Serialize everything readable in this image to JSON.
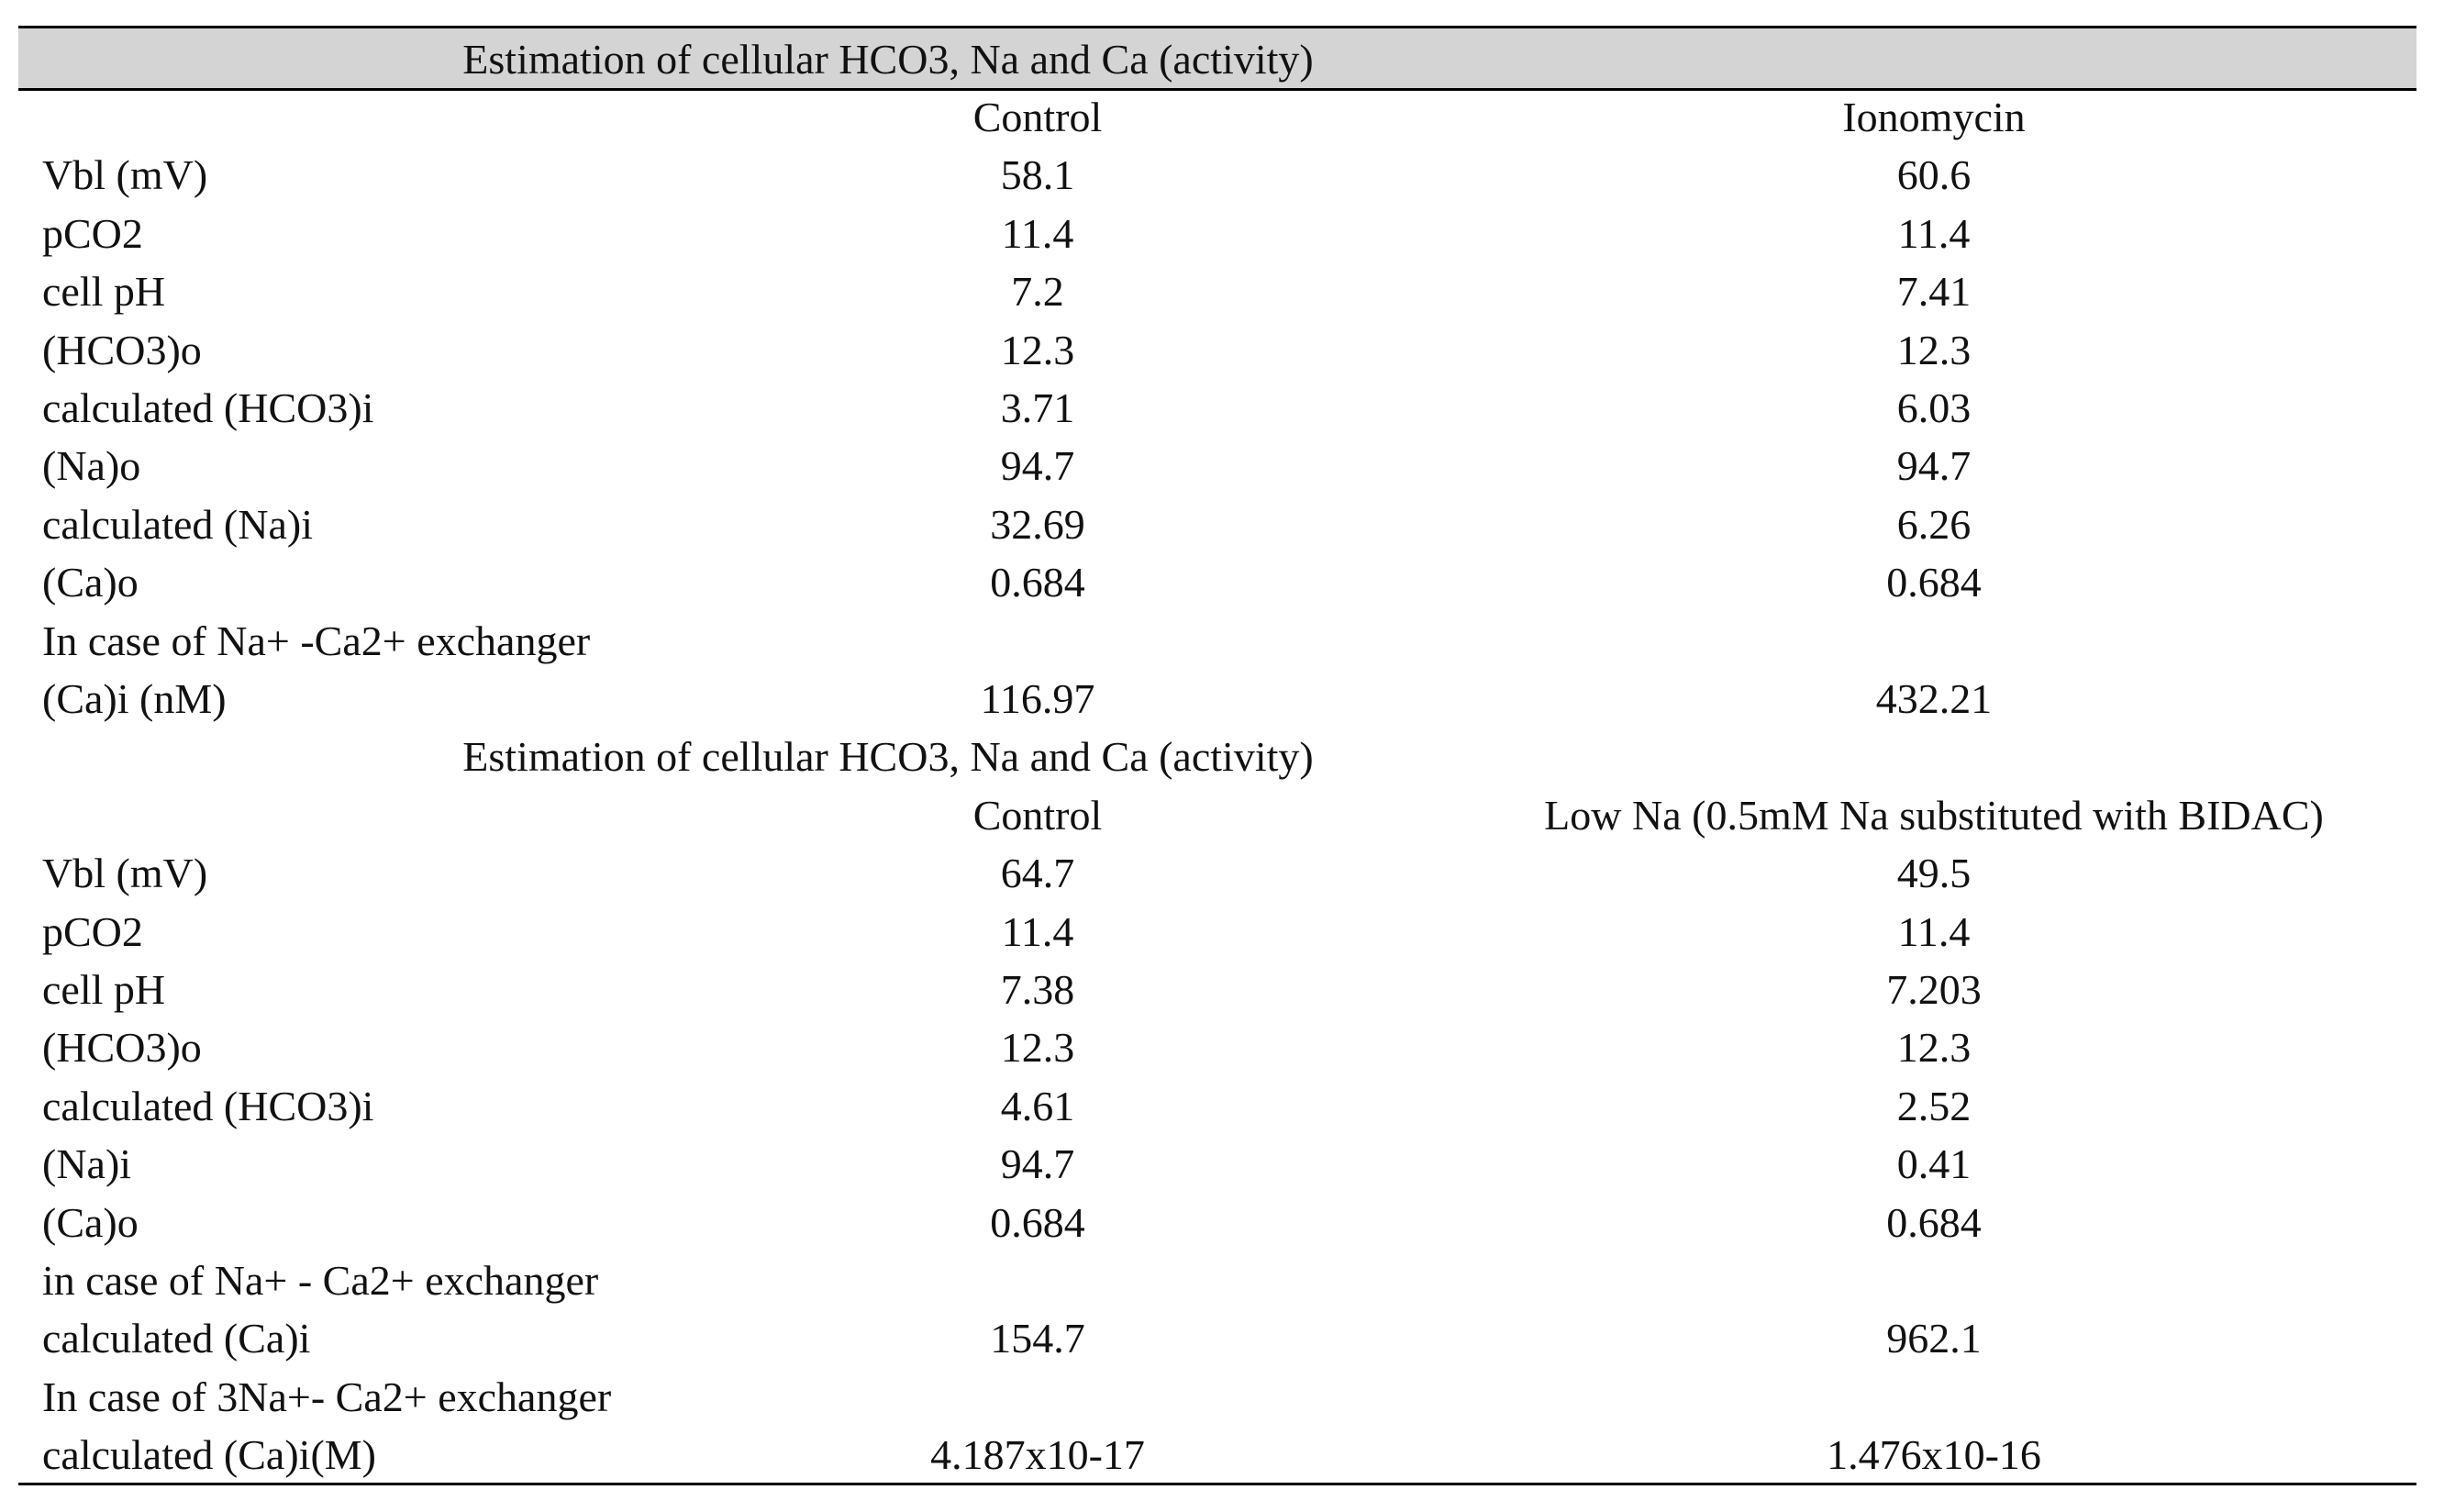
{
  "sections": [
    {
      "title": "Estimation of cellular HCO3, Na and Ca (activity)",
      "columns": [
        "Control",
        "Ionomycin"
      ],
      "rows": [
        [
          "Vbl (mV)",
          "58.1",
          "60.6"
        ],
        [
          "pCO2",
          "11.4",
          "11.4"
        ],
        [
          "cell pH",
          "7.2",
          "7.41"
        ],
        [
          "(HCO3)o",
          "12.3",
          "12.3"
        ],
        [
          "calculated (HCO3)i",
          "3.71",
          "6.03"
        ],
        [
          "(Na)o",
          "94.7",
          "94.7"
        ],
        [
          "calculated (Na)i",
          "32.69",
          "6.26"
        ],
        [
          "(Ca)o",
          "0.684",
          "0.684"
        ],
        [
          "In case of Na+ -Ca2+ exchanger"
        ],
        [
          "(Ca)i (nM)",
          "116.97",
          "432.21"
        ]
      ]
    },
    {
      "title": "Estimation of cellular HCO3, Na and Ca (activity)",
      "columns": [
        "Control",
        "Low Na (0.5mM Na substituted with BIDAC)"
      ],
      "rows": [
        [
          "Vbl (mV)",
          "64.7",
          "49.5"
        ],
        [
          "pCO2",
          "11.4",
          "11.4"
        ],
        [
          "cell pH",
          "7.38",
          "7.203"
        ],
        [
          "(HCO3)o",
          "12.3",
          "12.3"
        ],
        [
          "calculated  (HCO3)i",
          "4.61",
          "2.52"
        ],
        [
          "(Na)i",
          "94.7",
          "0.41"
        ],
        [
          "(Ca)o",
          "0.684",
          "0.684"
        ],
        [
          "in case of Na+ - Ca2+ exchanger"
        ],
        [
          "calculated (Ca)i",
          "154.7",
          "962.1"
        ],
        [
          "In case of 3Na+- Ca2+ exchanger"
        ],
        [
          "calculated (Ca)i(M)",
          "4.187x10-17",
          "1.476x10-16"
        ]
      ]
    }
  ]
}
